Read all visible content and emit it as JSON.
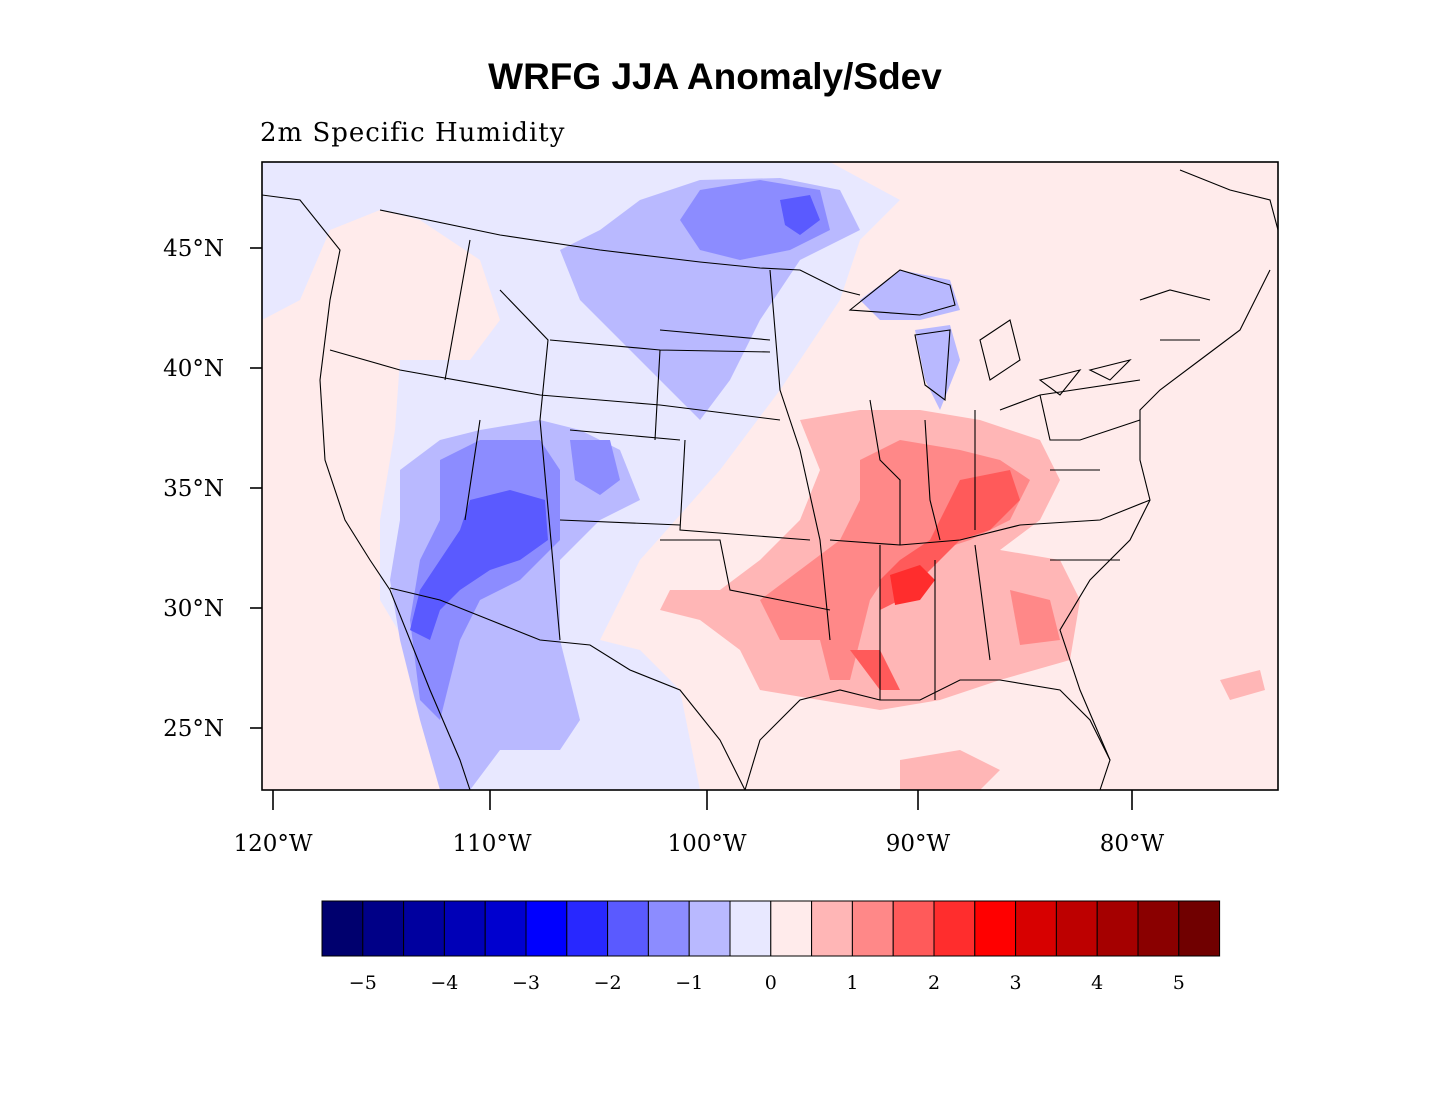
{
  "title": "WRFG JJA Anomaly/Sdev",
  "subtitle": "2m Specific Humidity",
  "lat_labels": [
    "45°N",
    "40°N",
    "35°N",
    "30°N",
    "25°N"
  ],
  "lon_labels": [
    "120°W",
    "110°W",
    "100°W",
    "90°W",
    "80°W"
  ],
  "colorbar": {
    "colors": [
      "#00006e",
      "#000087",
      "#00009f",
      "#0000b7",
      "#0000cf",
      "#0000ff",
      "#2828ff",
      "#5a5aff",
      "#8c8cff",
      "#b9b9ff",
      "#e8e8ff",
      "#ffebeb",
      "#ffb6b6",
      "#ff8888",
      "#ff5a5a",
      "#ff2d2d",
      "#ff0000",
      "#d70000",
      "#bd0000",
      "#a50000",
      "#8a0000",
      "#700000"
    ],
    "labels": [
      "−5",
      "−4",
      "−3",
      "−2",
      "−1",
      "0",
      "1",
      "2",
      "3",
      "4",
      "5"
    ]
  },
  "palette": {
    "neg1": "#b9b9ff",
    "neg2": "#8c8cff",
    "neg3": "#5a5aff",
    "neg4": "#2828ff",
    "neutral_neg": "#e8e8ff",
    "neutral_pos": "#ffebeb",
    "pos1": "#ffb6b6",
    "pos2": "#ff8888",
    "pos3": "#ff5a5a",
    "pos4": "#ff2d2d"
  }
}
